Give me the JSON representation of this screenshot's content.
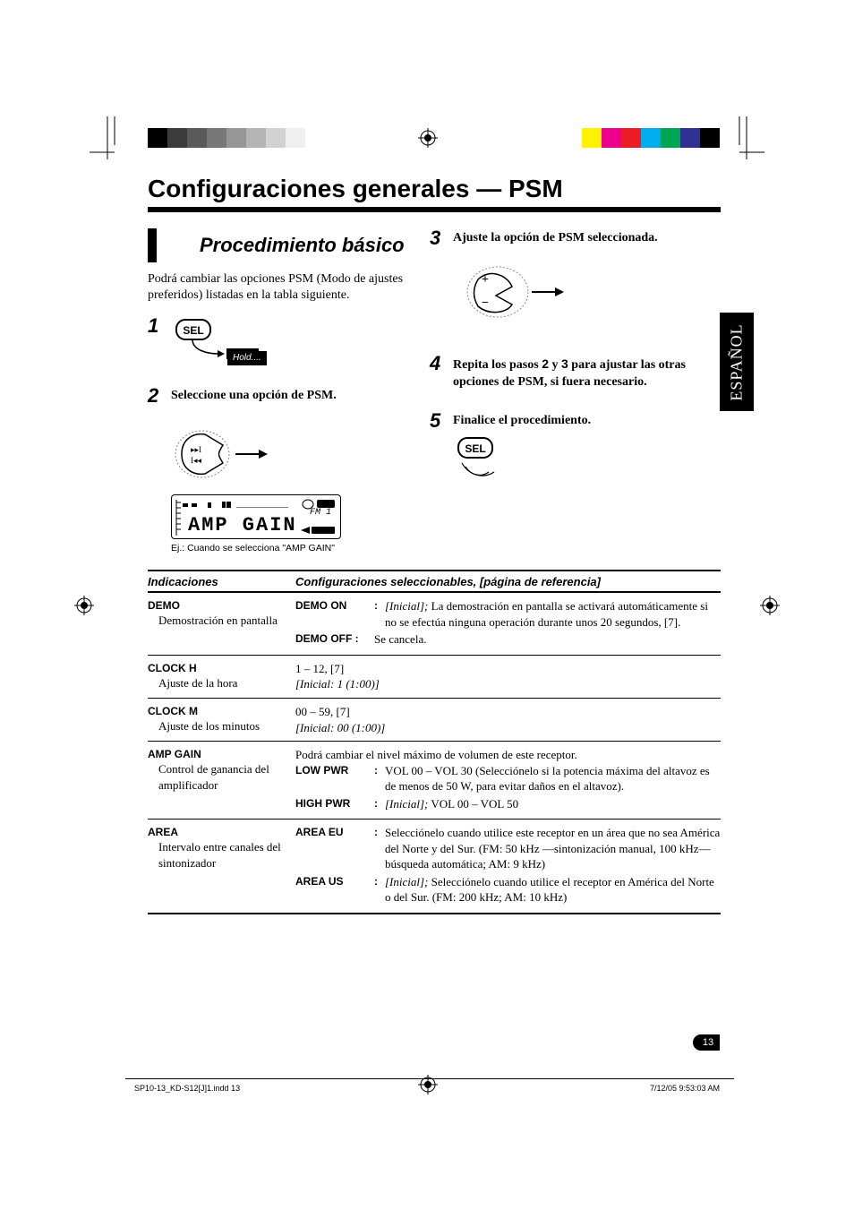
{
  "language_tab": "ESPAÑOL",
  "main_title": "Configuraciones generales — PSM",
  "section_title": "Procedimiento básico",
  "intro_text": "Podrá cambiar las opciones PSM (Modo de ajustes preferidos) listadas en la tabla siguiente.",
  "steps": {
    "s1_num": "1",
    "s2_num": "2",
    "s2_text": "Seleccione una opción de PSM.",
    "s3_num": "3",
    "s3_text": "Ajuste la opción de PSM seleccionada.",
    "s4_num": "4",
    "s4_prefix": "Repita los pasos ",
    "s4_b1": "2",
    "s4_mid": " y ",
    "s4_b2": "3",
    "s4_suffix": " para ajustar las otras opciones de PSM, si fuera necesario.",
    "s5_num": "5",
    "s5_text": "Finalice el procedimiento."
  },
  "sel_label": "SEL",
  "hold_label": "Hold....",
  "display_seg": "AMP  GAIN",
  "display_fm": "FM 1",
  "display_caption": "Ej.: Cuando se selecciona \"AMP GAIN\"",
  "table": {
    "header_c1": "Indicaciones",
    "header_c2": "Configuraciones seleccionables, [página de referencia]",
    "rows": [
      {
        "key": "DEMO",
        "key_sub": "Demostración en pantalla",
        "settings": [
          {
            "k": "DEMO ON",
            "v_prefix_italic": "[Inicial];",
            "v": " La demostración en pantalla se activará automáticamente si no se efectúa ninguna operación durante unos 20 segundos, [7]."
          },
          {
            "k": "DEMO OFF :",
            "v": "Se cancela."
          }
        ]
      },
      {
        "key": "CLOCK H",
        "key_sub": "Ajuste de la hora",
        "plain": "1 – 12, [7]",
        "plain_italic": "[Inicial: 1 (1:00)]"
      },
      {
        "key": "CLOCK M",
        "key_sub": "Ajuste de los minutos",
        "plain": "00 – 59, [7]",
        "plain_italic": "[Inicial: 00 (1:00)]"
      },
      {
        "key": "AMP GAIN",
        "key_sub": "Control de ganancia del amplificador",
        "lead": "Podrá cambiar el nivel máximo de volumen de este receptor.",
        "settings": [
          {
            "k": "LOW PWR",
            "v": "VOL 00 – VOL 30 (Selecciónelo si la potencia máxima del altavoz es de menos de 50 W, para evitar daños en el altavoz)."
          },
          {
            "k": "HIGH PWR",
            "v_prefix_italic": "[Inicial];",
            "v": " VOL 00 – VOL 50"
          }
        ]
      },
      {
        "key": "AREA",
        "key_sub": "Intervalo entre canales del sintonizador",
        "settings": [
          {
            "k": "AREA EU",
            "v": "Selecciónelo cuando utilice este receptor en un área que no sea América del Norte y del Sur. (FM: 50 kHz —sintonización manual, 100 kHz—búsqueda automática; AM: 9 kHz)"
          },
          {
            "k": "AREA US",
            "v_prefix_italic": "[Inicial];",
            "v": " Selecciónelo cuando utilice el receptor en América del Norte o del Sur. (FM: 200 kHz; AM: 10 kHz)"
          }
        ]
      }
    ]
  },
  "page_number": "13",
  "footer_left": "SP10-13_KD-S12[J]1.indd   13",
  "footer_right": "7/12/05   9:53:03 AM",
  "colors": {
    "bars_left": [
      "#000000",
      "#3b3b3b",
      "#5a5a5a",
      "#787878",
      "#969696",
      "#b4b4b4",
      "#d2d2d2",
      "#f0f0f0",
      "#ffffff",
      "#ffffff"
    ],
    "bars_right": [
      "#ffffff",
      "#fff200",
      "#ec008c",
      "#ed1c24",
      "#00aeef",
      "#00a651",
      "#2e3192",
      "#000000"
    ]
  }
}
